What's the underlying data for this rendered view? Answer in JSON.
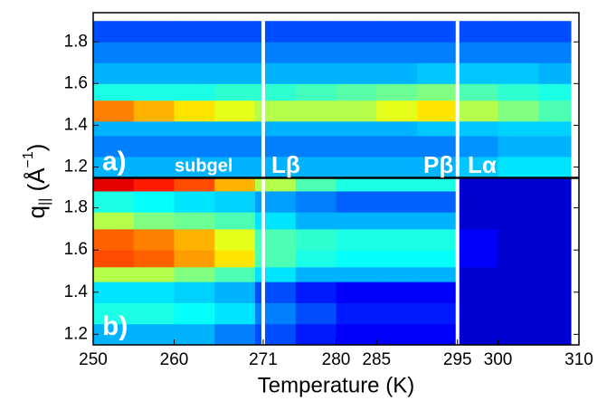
{
  "chart_data": [
    {
      "type": "heatmap",
      "colormap": "jet",
      "ylabel_parts": [
        "q",
        "||",
        " (Å",
        "−1",
        ")"
      ],
      "xlim": [
        250,
        310
      ],
      "ylim": [
        1.15,
        1.94
      ],
      "yticks": [
        1.2,
        1.4,
        1.6,
        1.8
      ],
      "x_edges": [
        250,
        255,
        260,
        265,
        270,
        275,
        280,
        285,
        290,
        295,
        300,
        305,
        309
      ],
      "y_edges": [
        1.15,
        1.25,
        1.35,
        1.42,
        1.52,
        1.6,
        1.7,
        1.8,
        1.9
      ],
      "values": [
        [
          0.3,
          0.3,
          0.3,
          0.3,
          0.3,
          0.3,
          0.3,
          0.3,
          0.3,
          0.32,
          0.35,
          0.35
        ],
        [
          0.25,
          0.25,
          0.25,
          0.25,
          0.25,
          0.25,
          0.25,
          0.25,
          0.25,
          0.27,
          0.3,
          0.3
        ],
        [
          0.3,
          0.3,
          0.3,
          0.3,
          0.3,
          0.3,
          0.3,
          0.3,
          0.32,
          0.32,
          0.33,
          0.33
        ],
        [
          0.75,
          0.7,
          0.65,
          0.6,
          0.55,
          0.55,
          0.55,
          0.6,
          0.65,
          0.55,
          0.5,
          0.45
        ],
        [
          0.4,
          0.4,
          0.4,
          0.42,
          0.42,
          0.44,
          0.46,
          0.48,
          0.5,
          0.45,
          0.42,
          0.4
        ],
        [
          0.3,
          0.3,
          0.3,
          0.3,
          0.3,
          0.3,
          0.3,
          0.3,
          0.32,
          0.32,
          0.32,
          0.3
        ],
        [
          0.25,
          0.25,
          0.25,
          0.25,
          0.25,
          0.25,
          0.25,
          0.25,
          0.25,
          0.25,
          0.25,
          0.25
        ],
        [
          0.2,
          0.2,
          0.2,
          0.2,
          0.2,
          0.2,
          0.2,
          0.2,
          0.2,
          0.2,
          0.2,
          0.2
        ]
      ],
      "vlines": [
        271,
        295
      ],
      "annotations": [
        "a)",
        "subgel",
        "Lβ",
        "Pβ",
        "Lα"
      ]
    },
    {
      "type": "heatmap",
      "colormap": "jet",
      "xlabel": "Temperature (K)",
      "xlim": [
        250,
        310
      ],
      "ylim": [
        1.15,
        1.94
      ],
      "yticks": [
        1.2,
        1.4,
        1.6,
        1.8
      ],
      "xticks": [
        250,
        260,
        271,
        280,
        285,
        295,
        300,
        310
      ],
      "x_edges": [
        250,
        255,
        260,
        265,
        270,
        275,
        280,
        285,
        290,
        295,
        300,
        305,
        309
      ],
      "y_edges": [
        1.15,
        1.25,
        1.35,
        1.45,
        1.52,
        1.6,
        1.7,
        1.78,
        1.88,
        1.94
      ],
      "values": [
        [
          0.3,
          0.3,
          0.3,
          0.25,
          0.2,
          0.15,
          0.12,
          0.12,
          0.12,
          0.08,
          0.08,
          0.08
        ],
        [
          0.4,
          0.4,
          0.38,
          0.35,
          0.25,
          0.2,
          0.15,
          0.15,
          0.15,
          0.08,
          0.08,
          0.08
        ],
        [
          0.35,
          0.35,
          0.33,
          0.3,
          0.2,
          0.15,
          0.12,
          0.12,
          0.12,
          0.08,
          0.08,
          0.08
        ],
        [
          0.55,
          0.55,
          0.5,
          0.45,
          0.35,
          0.3,
          0.3,
          0.3,
          0.3,
          0.08,
          0.08,
          0.08
        ],
        [
          0.8,
          0.78,
          0.72,
          0.65,
          0.45,
          0.4,
          0.38,
          0.38,
          0.38,
          0.12,
          0.08,
          0.08
        ],
        [
          0.78,
          0.75,
          0.7,
          0.6,
          0.45,
          0.42,
          0.4,
          0.4,
          0.4,
          0.12,
          0.08,
          0.08
        ],
        [
          0.55,
          0.5,
          0.48,
          0.45,
          0.35,
          0.3,
          0.3,
          0.3,
          0.3,
          0.08,
          0.08,
          0.08
        ],
        [
          0.4,
          0.38,
          0.35,
          0.33,
          0.28,
          0.25,
          0.22,
          0.22,
          0.22,
          0.08,
          0.08,
          0.08
        ],
        [
          0.9,
          0.85,
          0.8,
          0.7,
          0.55,
          0.45,
          0.4,
          0.4,
          0.4,
          0.08,
          0.08,
          0.08
        ]
      ],
      "vlines": [
        271,
        295
      ],
      "annotations": [
        "b)"
      ]
    }
  ]
}
